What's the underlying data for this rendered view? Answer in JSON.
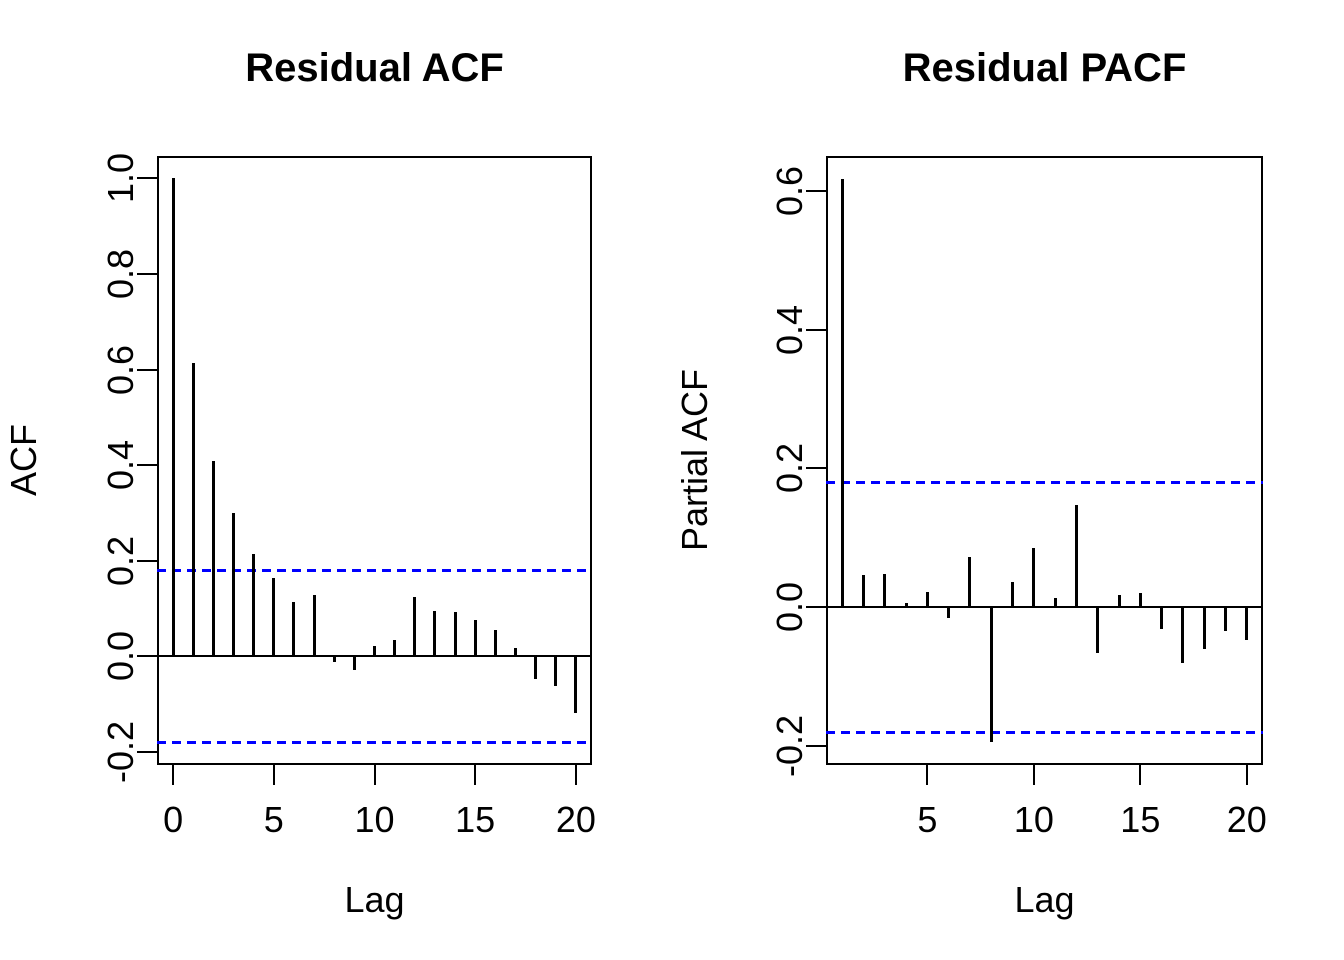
{
  "figure": {
    "background": "#ffffff",
    "foreground": "#000000",
    "conf_band_color": "#0000FF"
  },
  "chart_data": [
    {
      "type": "bar",
      "variant": "vertical-spike-acf",
      "title": "Residual ACF",
      "xlabel": "Lag",
      "ylabel": "ACF",
      "x": [
        0,
        1,
        2,
        3,
        4,
        5,
        6,
        7,
        8,
        9,
        10,
        11,
        12,
        13,
        14,
        15,
        16,
        17,
        18,
        19,
        20
      ],
      "values": [
        1.0,
        0.615,
        0.41,
        0.3,
        0.215,
        0.165,
        0.115,
        0.128,
        -0.011,
        -0.029,
        0.022,
        0.035,
        0.124,
        0.095,
        0.093,
        0.076,
        0.056,
        0.018,
        -0.048,
        -0.061,
        -0.119
      ],
      "conf_level": 0.18,
      "conf_line_style": "dashed",
      "conf_color": "#0000FF",
      "zero_line": true,
      "grid": false,
      "legend": null,
      "xlim": [
        -0.8,
        20.8
      ],
      "ylim": [
        -0.227,
        1.047
      ],
      "xticks": [
        0,
        5,
        10,
        15,
        20
      ],
      "xtick_labels": [
        "0",
        "5",
        "10",
        "15",
        "20"
      ],
      "yticks": [
        1.0,
        0.8,
        0.6,
        0.4,
        0.2,
        0.0,
        -0.2
      ],
      "ytick_labels": [
        "1.0",
        "0.8",
        "0.6",
        "0.4",
        "0.2",
        "0.0",
        "-0.2"
      ]
    },
    {
      "type": "bar",
      "variant": "vertical-spike-pacf",
      "title": "Residual PACF",
      "xlabel": "Lag",
      "ylabel": "Partial ACF",
      "x": [
        1,
        2,
        3,
        4,
        5,
        6,
        7,
        8,
        9,
        10,
        11,
        12,
        13,
        14,
        15,
        16,
        17,
        18,
        19,
        20
      ],
      "values": [
        0.618,
        0.046,
        0.048,
        0.006,
        0.022,
        -0.015,
        0.072,
        -0.195,
        0.036,
        0.085,
        0.013,
        0.147,
        -0.066,
        0.017,
        0.02,
        -0.031,
        -0.081,
        -0.06,
        -0.035,
        -0.047
      ],
      "conf_level": 0.18,
      "conf_line_style": "dashed",
      "conf_color": "#0000FF",
      "zero_line": true,
      "grid": false,
      "legend": null,
      "xlim": [
        0.24,
        20.76
      ],
      "ylim": [
        -0.2275,
        0.6505
      ],
      "xticks": [
        5,
        10,
        15,
        20
      ],
      "xtick_labels": [
        "5",
        "10",
        "15",
        "20"
      ],
      "yticks": [
        0.6,
        0.4,
        0.2,
        0.0,
        -0.2
      ],
      "ytick_labels": [
        "0.6",
        "0.4",
        "0.2",
        "0.0",
        "-0.2"
      ]
    }
  ]
}
